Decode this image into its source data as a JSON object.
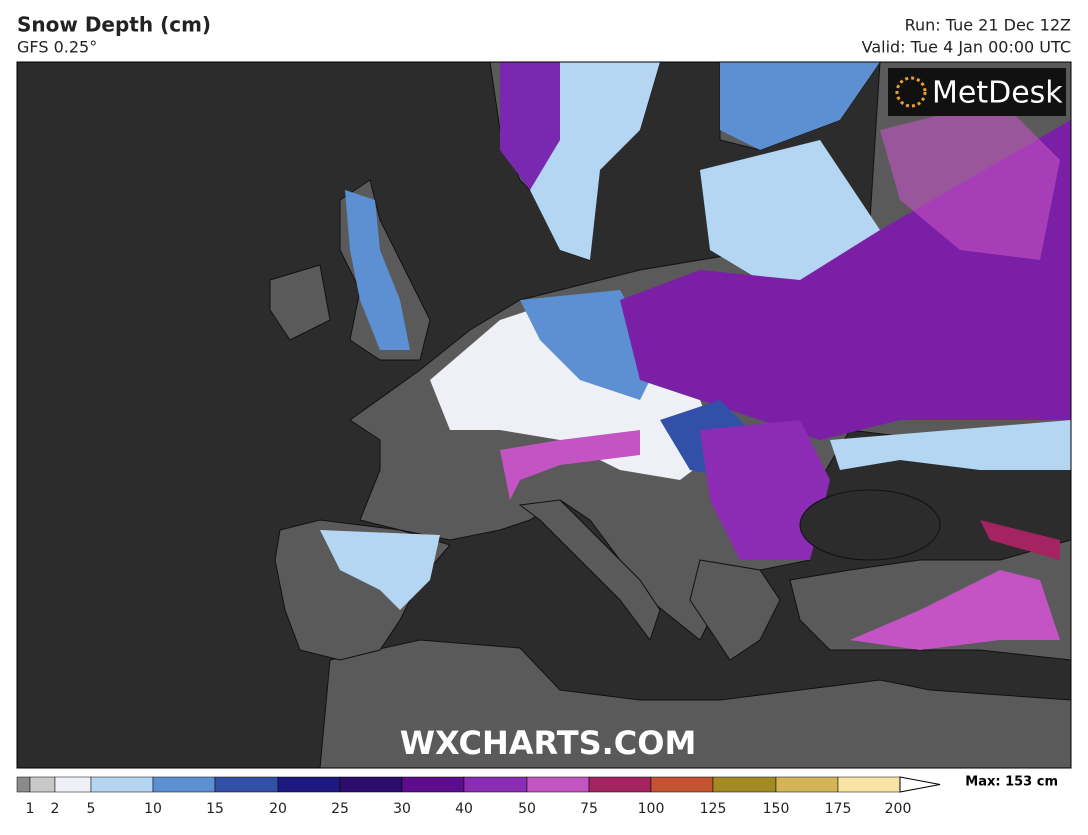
{
  "header": {
    "title": "Snow Depth (cm)",
    "model": "GFS 0.25°",
    "run": "Run: Tue 21 Dec 12Z",
    "valid": "Valid: Tue 4 Jan 00:00 UTC"
  },
  "map": {
    "logo": "MetDesk",
    "watermark": "WXCHARTS.COM"
  },
  "colorbar": {
    "labels": [
      "1",
      "2",
      "5",
      "10",
      "15",
      "20",
      "25",
      "30",
      "40",
      "50",
      "75",
      "100",
      "125",
      "150",
      "175",
      "200"
    ],
    "colors": [
      "#8a8a8a",
      "#c8c8c8",
      "#eef0f6",
      "#b4d6f2",
      "#5c90d2",
      "#3250a8",
      "#1c1a82",
      "#2c0c6c",
      "#5c0c8c",
      "#8c2cb4",
      "#c454c4",
      "#a42462",
      "#c45430",
      "#a48a22",
      "#d4b456",
      "#f8e2a4"
    ],
    "max": "Max: 153 cm"
  }
}
